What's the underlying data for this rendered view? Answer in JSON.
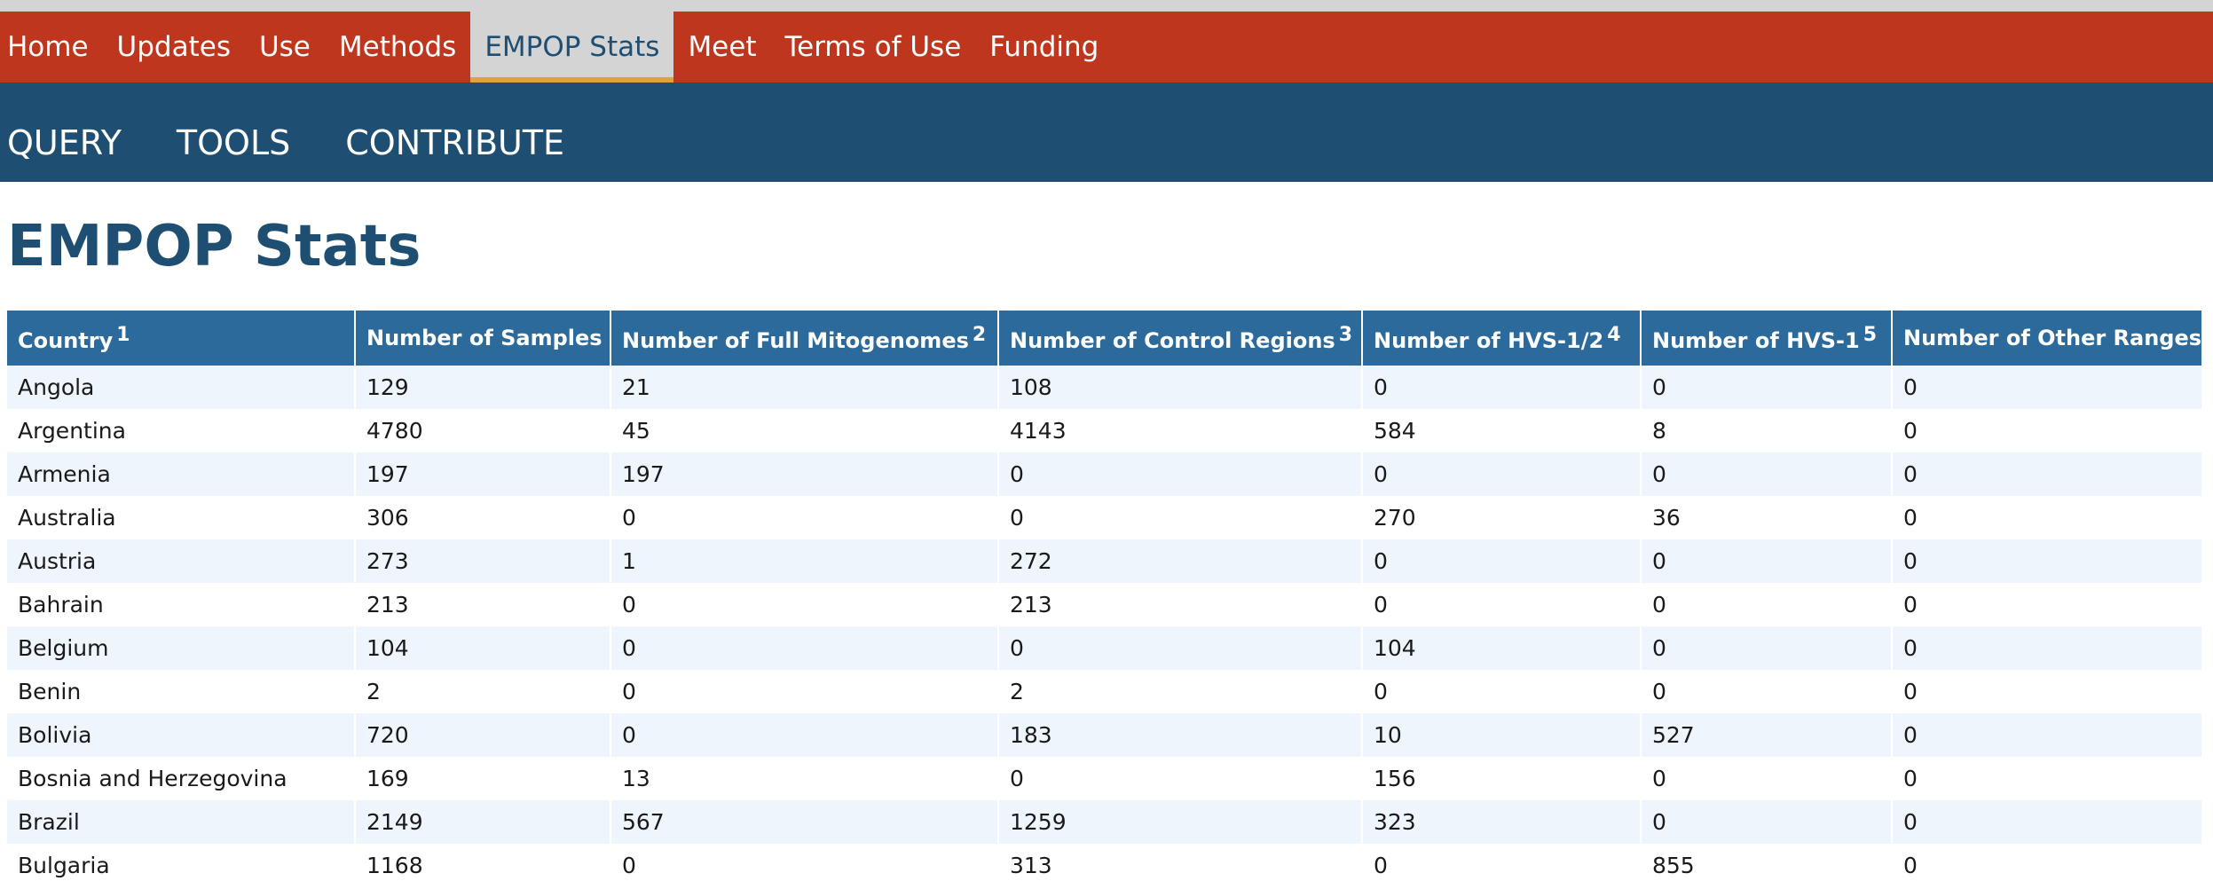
{
  "nav": {
    "items": [
      {
        "label": "Home",
        "name": "nav-home"
      },
      {
        "label": "Updates",
        "name": "nav-updates"
      },
      {
        "label": "Use",
        "name": "nav-use"
      },
      {
        "label": "Methods",
        "name": "nav-methods"
      },
      {
        "label": "EMPOP Stats",
        "name": "nav-empop-stats",
        "active": true
      },
      {
        "label": "Meet",
        "name": "nav-meet"
      },
      {
        "label": "Terms of Use",
        "name": "nav-terms-of-use"
      },
      {
        "label": "Funding",
        "name": "nav-funding"
      }
    ]
  },
  "subnav": {
    "items": [
      {
        "label": "QUERY",
        "name": "subnav-query"
      },
      {
        "label": "TOOLS",
        "name": "subnav-tools"
      },
      {
        "label": "CONTRIBUTE",
        "name": "subnav-contribute"
      }
    ]
  },
  "page": {
    "title": "EMPOP Stats"
  },
  "table": {
    "columns": [
      {
        "label": "Country",
        "sup": "1"
      },
      {
        "label": "Number of Samples",
        "sup": ""
      },
      {
        "label": "Number of Full Mitogenomes",
        "sup": "2"
      },
      {
        "label": "Number of Control Regions",
        "sup": "3"
      },
      {
        "label": "Number of HVS-1/2",
        "sup": "4"
      },
      {
        "label": "Number of HVS-1",
        "sup": "5"
      },
      {
        "label": "Number of Other Ranges",
        "sup": ""
      }
    ],
    "rows": [
      [
        "Angola",
        "129",
        "21",
        "108",
        "0",
        "0",
        "0"
      ],
      [
        "Argentina",
        "4780",
        "45",
        "4143",
        "584",
        "8",
        "0"
      ],
      [
        "Armenia",
        "197",
        "197",
        "0",
        "0",
        "0",
        "0"
      ],
      [
        "Australia",
        "306",
        "0",
        "0",
        "270",
        "36",
        "0"
      ],
      [
        "Austria",
        "273",
        "1",
        "272",
        "0",
        "0",
        "0"
      ],
      [
        "Bahrain",
        "213",
        "0",
        "213",
        "0",
        "0",
        "0"
      ],
      [
        "Belgium",
        "104",
        "0",
        "0",
        "104",
        "0",
        "0"
      ],
      [
        "Benin",
        "2",
        "0",
        "2",
        "0",
        "0",
        "0"
      ],
      [
        "Bolivia",
        "720",
        "0",
        "183",
        "10",
        "527",
        "0"
      ],
      [
        "Bosnia and Herzegovina",
        "169",
        "13",
        "0",
        "156",
        "0",
        "0"
      ],
      [
        "Brazil",
        "2149",
        "567",
        "1259",
        "323",
        "0",
        "0"
      ],
      [
        "Bulgaria",
        "1168",
        "0",
        "313",
        "0",
        "855",
        "0"
      ]
    ]
  }
}
